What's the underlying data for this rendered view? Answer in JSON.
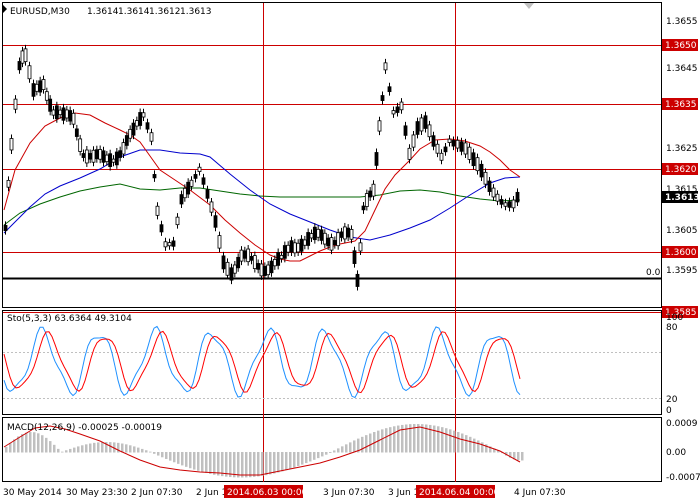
{
  "header": {
    "symbol": "EURUSD,M30",
    "open": "1.3614",
    "high": "1.3614",
    "low": "1.3612",
    "close": "1.3613"
  },
  "price_axis": {
    "ticks": [
      "1.3655",
      "1.3645",
      "1.3625",
      "1.3615",
      "1.3605",
      "1.3595"
    ],
    "level_labels": [
      "1.3650",
      "1.3635",
      "1.3620",
      "1.3600",
      "1.3585"
    ],
    "current_price": "1.3613",
    "zero_label": "0.0"
  },
  "stochastic": {
    "caption": "Sto(5,3,3) 63.6364 49.3104",
    "ticks": [
      "100",
      "80",
      "20",
      "0"
    ]
  },
  "macd": {
    "caption": "MACD(12,26,9) -0.00025 -0.00019",
    "ticks": [
      "0.0009",
      "0.00",
      "-0.0007"
    ]
  },
  "time_axis": {
    "labels": [
      "30 May 2014",
      "30 May 23:30",
      "2 Jun 07:30",
      "2 Jun 1",
      "3 Jun 07:30",
      "3 Jun 1",
      "4 Jun 07:30"
    ],
    "highlights": [
      "2014.06.03 00:00",
      "2014.06.04 00:00"
    ]
  },
  "colors": {
    "background": "#ffffff",
    "candles": "#000000",
    "ma_fast": "#cc0000",
    "ma_mid": "#0000cc",
    "ma_slow": "#006600",
    "levels": "#cc0000",
    "label_box": "#cc0000",
    "current_price_box": "#000000",
    "histogram": "#c0c0c0",
    "stoch_main": "#1e90ff",
    "stoch_signal": "#ff0000"
  }
}
